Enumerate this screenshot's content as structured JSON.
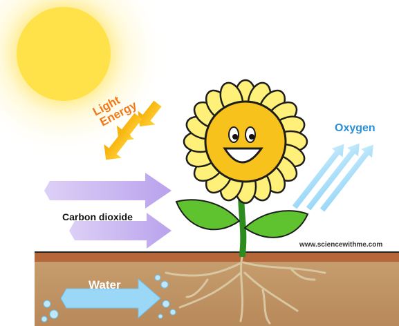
{
  "labels": {
    "light_energy": [
      "Light",
      "Energy"
    ],
    "oxygen": "Oxygen",
    "carbon_dioxide": "Carbon dioxide",
    "water": "Water",
    "credit": "www.sciencewithme.com"
  }
}
